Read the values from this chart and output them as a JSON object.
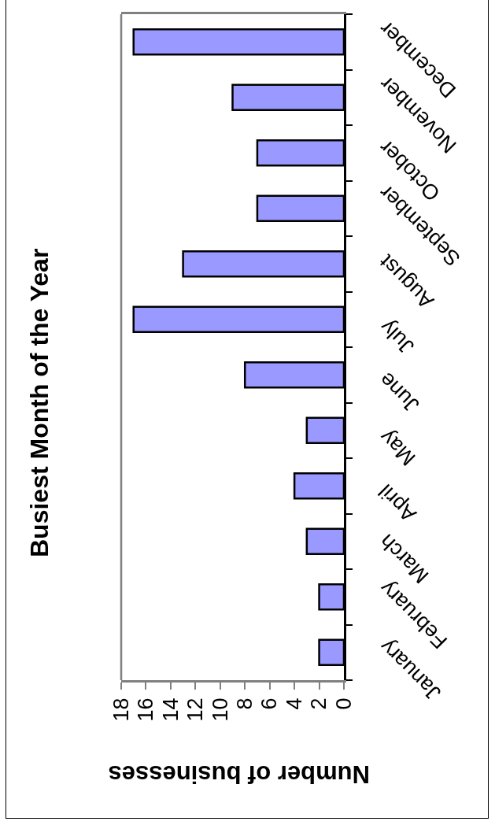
{
  "chart_data": {
    "type": "bar",
    "orientation": "horizontal",
    "title": "Busiest Month of the Year",
    "xlabel": "Number of businesses",
    "categories": [
      "December",
      "November",
      "October",
      "September",
      "August",
      "July",
      "June",
      "May",
      "April",
      "March",
      "February",
      "January"
    ],
    "values": [
      17,
      9,
      7,
      7,
      13,
      17,
      8,
      3,
      4,
      3,
      2,
      2
    ],
    "color": "#9999ff",
    "xlim": [
      18,
      0
    ],
    "xticks": [
      18,
      16,
      14,
      12,
      10,
      8,
      6,
      4,
      2,
      0
    ],
    "grid": false,
    "legend": false
  }
}
